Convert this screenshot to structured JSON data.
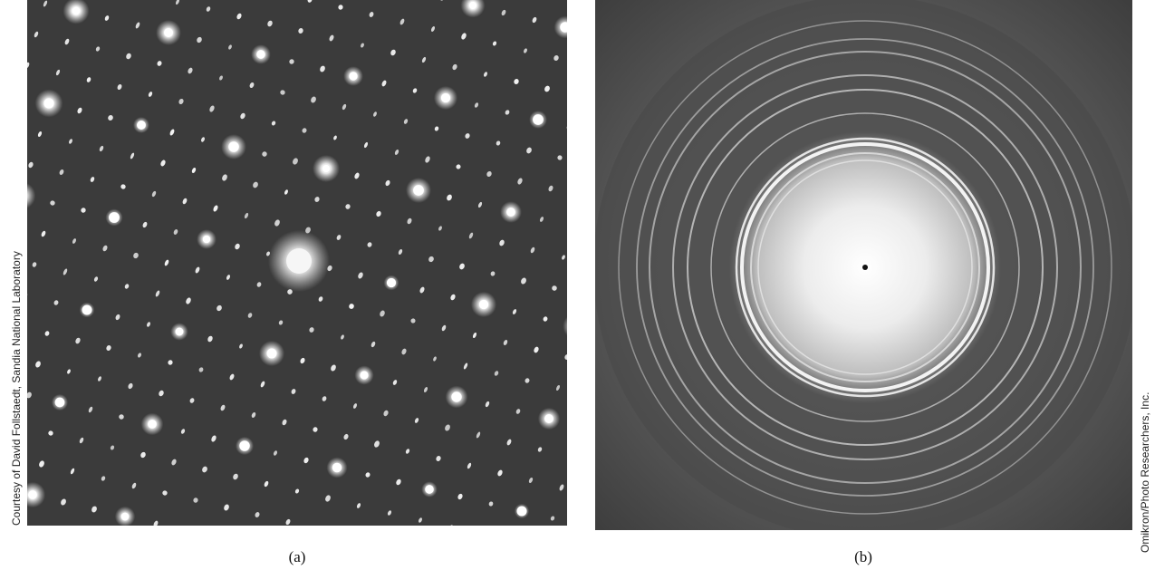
{
  "panels": [
    {
      "credit": "Courtesy of David Follstaedt, Sandia National Laboratory",
      "label": "(a)"
    },
    {
      "credit": "Omikron/Photo Researchers, Inc.",
      "label": "(b)"
    }
  ]
}
